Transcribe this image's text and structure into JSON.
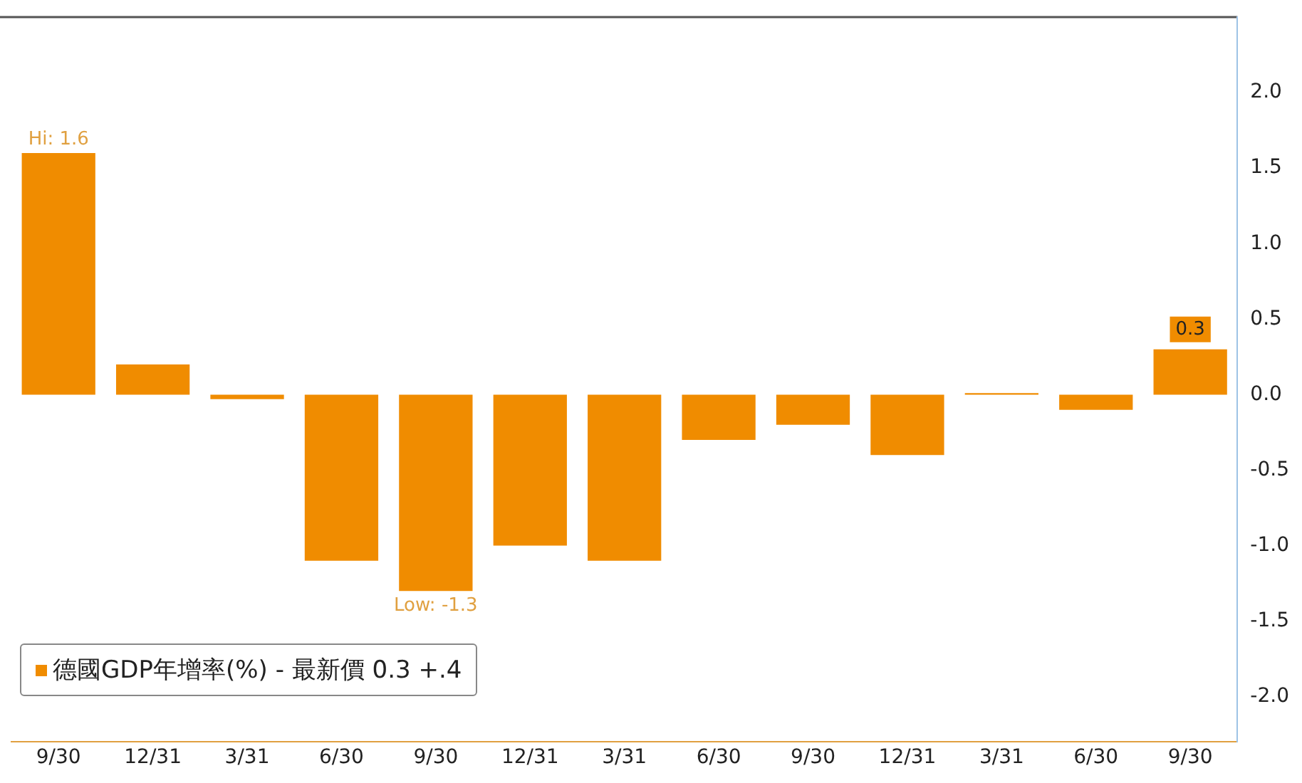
{
  "chart_data": {
    "type": "bar",
    "categories": [
      "9/30",
      "12/31",
      "3/31",
      "6/30",
      "9/30",
      "12/31",
      "3/31",
      "6/30",
      "9/30",
      "12/31",
      "3/31",
      "6/30",
      "9/30"
    ],
    "series": [
      {
        "name": "德國GDP年增率(%) - 最新價 0.3 +.4",
        "color": "#f08c00",
        "values": [
          1.6,
          0.2,
          -0.03,
          -1.1,
          -1.3,
          -1.0,
          -1.1,
          -0.3,
          -0.2,
          -0.4,
          0.01,
          -0.1,
          0.3
        ],
        "value_labels": [
          "Hi: 1.6",
          null,
          null,
          null,
          "Low: -1.3",
          null,
          null,
          null,
          null,
          null,
          null,
          null,
          "0.3"
        ]
      }
    ],
    "ylim": [
      -2.3,
      2.5
    ],
    "yticks": [
      {
        "value": 2,
        "label": "2.0"
      },
      {
        "value": 1.5,
        "label": "1.5"
      },
      {
        "value": 1,
        "label": "1.0"
      },
      {
        "value": 0.5,
        "label": "0.5"
      },
      {
        "value": 0,
        "label": "0.0"
      },
      {
        "value": -0.5,
        "label": "-0.5"
      },
      {
        "value": -1,
        "label": "-1.0"
      },
      {
        "value": -1.5,
        "label": "-1.5"
      },
      {
        "value": -2,
        "label": "-2.0"
      }
    ],
    "grid": false,
    "legend": "bottom left"
  }
}
